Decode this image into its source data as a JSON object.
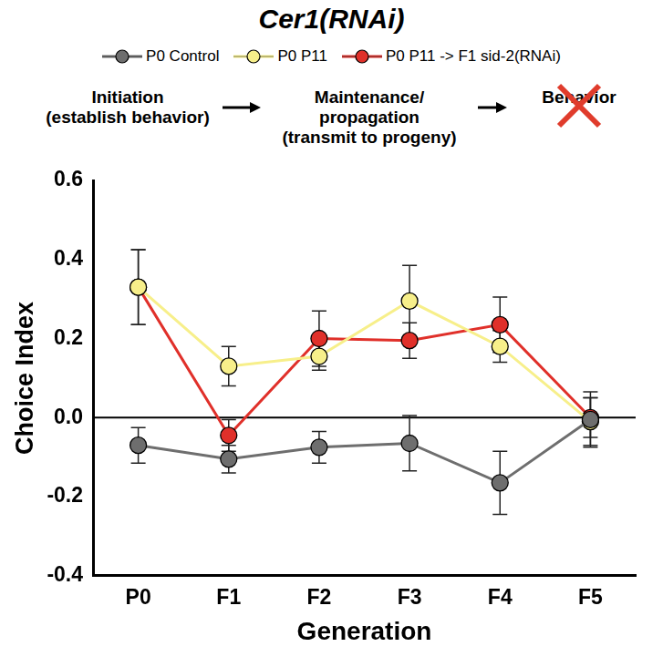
{
  "chart_data": {
    "type": "line",
    "title": "Cer1(RNAi)",
    "diagram": [
      {
        "lines": [
          "Initiation",
          "(establish behavior)"
        ]
      },
      {
        "lines": [
          "Maintenance/",
          "propagation",
          "(transmit to progeny)"
        ]
      },
      {
        "lines": [
          "Behavior"
        ]
      }
    ],
    "x_label": "Generation",
    "y_label": "Choice Index",
    "categories": [
      "P0",
      "F1",
      "F2",
      "F3",
      "F4",
      "F5"
    ],
    "series": [
      {
        "name": "P0 Control",
        "color": "#6e6e6e",
        "marker": "circle",
        "values": [
          -0.07,
          -0.105,
          -0.075,
          -0.065,
          -0.165,
          -0.005
        ],
        "errors": [
          0.045,
          0.035,
          0.04,
          0.07,
          0.08,
          0.07
        ]
      },
      {
        "name": "P0 P11",
        "color": "#f7ef8a",
        "marker": "circle",
        "values": [
          0.33,
          0.13,
          0.155,
          0.295,
          0.18,
          -0.01
        ],
        "errors": [
          0.095,
          0.05,
          0.035,
          0.09,
          0.04,
          0.06
        ]
      },
      {
        "name": "P0 P11 -> F1 sid-2(RNAi)",
        "color": "#e0302a",
        "marker": "circle",
        "values": [
          0.33,
          -0.045,
          0.2,
          0.195,
          0.235,
          0.0
        ],
        "errors": [
          0.095,
          0.04,
          0.07,
          0.045,
          0.07,
          0.05
        ]
      }
    ],
    "ylim": [
      -0.4,
      0.6
    ],
    "yticks": [
      -0.4,
      -0.2,
      {
        "value": 0,
        "label": "0.0"
      },
      0.2,
      0.4,
      0.6
    ],
    "grid": false,
    "legend": "top"
  }
}
